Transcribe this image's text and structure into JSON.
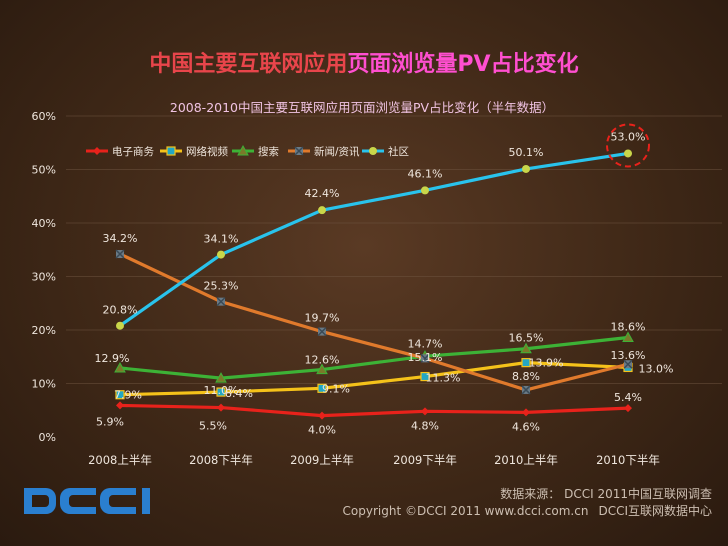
{
  "title_part1": "中国主要互联网应用",
  "title_part2": "页面浏览量PV占比变化",
  "chart_data": {
    "type": "line",
    "title": "2008-2010中国主要互联网应用页面浏览量PV占比变化（半年数据）",
    "categories": [
      "2008上半年",
      "2008下半年",
      "2009上半年",
      "2009下半年",
      "2010上半年",
      "2010下半年"
    ],
    "ylim": [
      0,
      60
    ],
    "yticks": [
      "0%",
      "10%",
      "20%",
      "30%",
      "40%",
      "50%",
      "60%"
    ],
    "legend_position": "top",
    "series": [
      {
        "name": "电子商务",
        "color": "#e8221b",
        "marker": "diamond",
        "values": [
          5.9,
          5.5,
          4.0,
          4.8,
          4.6,
          5.4
        ],
        "labels": [
          "5.9%",
          "5.5%",
          "4.0%",
          "4.8%",
          "4.6%",
          "5.4%"
        ]
      },
      {
        "name": "网络视频",
        "color": "#f5c21a",
        "marker": "square",
        "values": [
          7.9,
          8.4,
          9.1,
          11.3,
          13.9,
          13.0
        ],
        "labels": [
          "7.9%",
          "8.4%",
          "9.1%",
          "11.3%",
          "13.9%",
          "13.0%"
        ]
      },
      {
        "name": "搜索",
        "color": "#3db236",
        "marker": "triangle",
        "values": [
          12.9,
          11.0,
          12.6,
          15.1,
          16.5,
          18.6
        ],
        "labels": [
          "12.9%",
          "11.0%",
          "12.6%",
          "15.1%",
          "16.5%",
          "18.6%"
        ]
      },
      {
        "name": "新闻/资讯",
        "color": "#e07a2c",
        "marker": "x",
        "values": [
          34.2,
          25.3,
          19.7,
          14.7,
          8.8,
          13.6
        ],
        "labels": [
          "34.2%",
          "25.3%",
          "19.7%",
          "14.7%",
          "8.8%",
          "13.6%"
        ]
      },
      {
        "name": "社区",
        "color": "#29c3ec",
        "marker": "circle",
        "values": [
          20.8,
          34.1,
          42.4,
          46.1,
          50.1,
          53.0
        ],
        "labels": [
          "20.8%",
          "34.1%",
          "42.4%",
          "46.1%",
          "50.1%",
          "53.0%"
        ]
      }
    ],
    "highlight": {
      "series": "社区",
      "index": 5,
      "color": "#e8221b"
    }
  },
  "source_line1": "数据来源： DCCI 2011中国互联网调查",
  "source_copyright": "Copyright ©DCCI 2011 www.dcci.com.cn",
  "source_center": "DCCI互联网数据中心"
}
